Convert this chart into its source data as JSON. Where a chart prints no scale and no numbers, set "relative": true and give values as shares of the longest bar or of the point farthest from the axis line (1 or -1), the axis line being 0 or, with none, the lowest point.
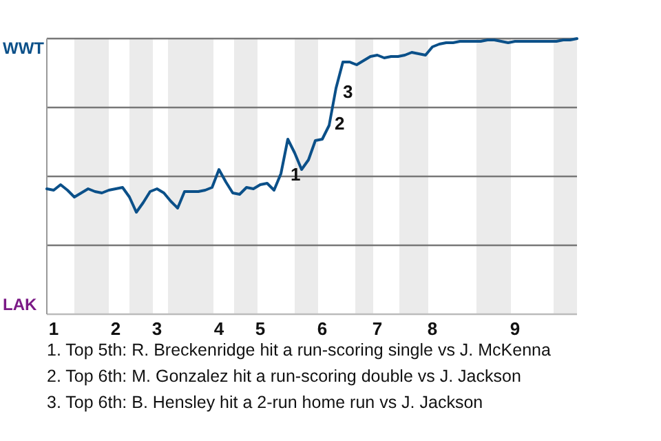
{
  "chart_data": {
    "type": "line",
    "relative": true,
    "categories": [
      null,
      "1",
      null,
      null,
      null,
      null,
      null,
      null,
      null,
      null,
      "2",
      null,
      null,
      null,
      null,
      null,
      "3",
      null,
      null,
      null,
      null,
      null,
      null,
      null,
      null,
      "4",
      null,
      null,
      null,
      null,
      null,
      "5",
      null,
      null,
      null,
      null,
      null,
      null,
      null,
      null,
      "6",
      null,
      null,
      null,
      null,
      null,
      null,
      null,
      "7",
      null,
      null,
      null,
      null,
      null,
      null,
      null,
      "8",
      null,
      null,
      null,
      null,
      null,
      null,
      null,
      null,
      null,
      null,
      null,
      "9",
      null,
      null,
      null,
      null,
      null,
      null,
      null,
      null,
      null
    ],
    "marker": "none",
    "line_style": "solid",
    "ref_lines": [
      {
        "axis": "y",
        "value": 0.25,
        "color": "#777777"
      },
      {
        "axis": "y",
        "value": 0.5,
        "color": "#777777"
      },
      {
        "axis": "y",
        "value": 0.75,
        "color": "#777777"
      },
      {
        "axis": "y",
        "value": 1,
        "color": "#777777"
      }
    ],
    "series": [
      {
        "color": "#0b5089",
        "values": [
          0.455,
          0.45,
          0.47,
          0.45,
          0.425,
          0.44,
          0.455,
          0.445,
          0.44,
          0.45,
          0.455,
          0.46,
          0.425,
          0.37,
          0.405,
          0.445,
          0.455,
          0.44,
          0.41,
          0.385,
          0.445,
          0.445,
          0.445,
          0.45,
          0.46,
          0.525,
          0.48,
          0.44,
          0.435,
          0.46,
          0.455,
          0.47,
          0.475,
          0.45,
          0.51,
          0.635,
          0.585,
          0.525,
          0.56,
          0.63,
          0.635,
          0.685,
          0.82,
          0.915,
          0.915,
          0.905,
          0.92,
          0.935,
          0.94,
          0.93,
          0.935,
          0.935,
          0.94,
          0.95,
          0.945,
          0.94,
          0.97,
          0.98,
          0.985,
          0.985,
          0.99,
          0.99,
          0.99,
          0.99,
          0.995,
          0.995,
          0.99,
          0.985,
          0.99,
          0.99,
          0.99,
          0.99,
          0.99,
          0.99,
          0.99,
          0.995,
          0.995,
          1
        ]
      }
    ],
    "annotations": [
      "WWT",
      "LAK",
      "1",
      "2",
      "3",
      "1. Top 5th: R. Breckenridge hit a run-scoring single vs J. McKenna",
      "2. Top 6th: M. Gonzalez hit a run-scoring double vs J. Jackson",
      "3. Top 6th: B. Hensley hit a 2-run home run vs J. Jackson"
    ]
  }
}
